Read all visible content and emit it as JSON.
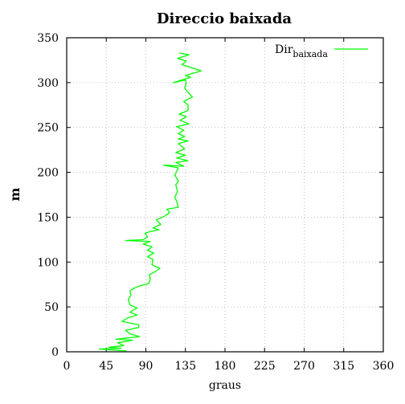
{
  "chart_data": {
    "type": "line",
    "title": "Direccio baixada",
    "xlabel": "graus",
    "ylabel": "m",
    "xlim": [
      0,
      360
    ],
    "ylim": [
      0,
      350
    ],
    "xticks": [
      0,
      45,
      90,
      135,
      180,
      225,
      270,
      315,
      360
    ],
    "yticks": [
      0,
      50,
      100,
      150,
      200,
      250,
      300,
      350
    ],
    "grid": true,
    "legend_position": "top-right",
    "series": [
      {
        "name": "Dir",
        "name_subscript": "baixada",
        "color": "#00ff00",
        "points": [
          [
            68,
            1
          ],
          [
            37,
            3
          ],
          [
            62,
            4
          ],
          [
            48,
            5
          ],
          [
            65,
            7
          ],
          [
            58,
            10
          ],
          [
            75,
            13
          ],
          [
            56,
            14
          ],
          [
            83,
            17
          ],
          [
            72,
            20
          ],
          [
            67,
            24
          ],
          [
            82,
            27
          ],
          [
            82,
            30
          ],
          [
            72,
            32
          ],
          [
            63,
            34
          ],
          [
            70,
            38
          ],
          [
            80,
            41
          ],
          [
            72,
            44
          ],
          [
            80,
            49
          ],
          [
            72,
            52
          ],
          [
            70,
            58
          ],
          [
            73,
            63
          ],
          [
            72,
            68
          ],
          [
            77,
            71
          ],
          [
            82,
            73
          ],
          [
            93,
            76
          ],
          [
            95,
            81
          ],
          [
            94,
            86
          ],
          [
            100,
            89
          ],
          [
            106,
            93
          ],
          [
            97,
            97
          ],
          [
            98,
            103
          ],
          [
            92,
            106
          ],
          [
            99,
            110
          ],
          [
            92,
            113
          ],
          [
            97,
            117
          ],
          [
            87,
            120
          ],
          [
            95,
            123
          ],
          [
            67,
            124
          ],
          [
            87,
            125
          ],
          [
            92,
            128
          ],
          [
            89,
            132
          ],
          [
            95,
            134
          ],
          [
            105,
            136
          ],
          [
            98,
            138
          ],
          [
            107,
            142
          ],
          [
            102,
            147
          ],
          [
            111,
            151
          ],
          [
            117,
            155
          ],
          [
            114,
            159
          ],
          [
            127,
            161
          ],
          [
            125,
            168
          ],
          [
            123,
            172
          ],
          [
            126,
            179
          ],
          [
            124,
            186
          ],
          [
            127,
            190
          ],
          [
            123,
            197
          ],
          [
            127,
            205
          ],
          [
            110,
            208
          ],
          [
            133,
            207
          ],
          [
            124,
            211
          ],
          [
            138,
            213
          ],
          [
            125,
            216
          ],
          [
            135,
            219
          ],
          [
            124,
            222
          ],
          [
            134,
            226
          ],
          [
            127,
            232
          ],
          [
            138,
            235
          ],
          [
            127,
            237
          ],
          [
            134,
            240
          ],
          [
            127,
            243
          ],
          [
            133,
            247
          ],
          [
            125,
            251
          ],
          [
            139,
            254
          ],
          [
            129,
            258
          ],
          [
            136,
            262
          ],
          [
            128,
            265
          ],
          [
            138,
            269
          ],
          [
            138,
            275
          ],
          [
            133,
            279
          ],
          [
            143,
            284
          ],
          [
            138,
            289
          ],
          [
            134,
            294
          ],
          [
            136,
            299
          ],
          [
            135,
            303
          ],
          [
            121,
            300
          ],
          [
            141,
            306
          ],
          [
            135,
            308
          ],
          [
            153,
            313
          ],
          [
            141,
            317
          ],
          [
            131,
            320
          ],
          [
            136,
            324
          ],
          [
            126,
            327
          ],
          [
            139,
            331
          ],
          [
            128,
            333
          ]
        ]
      }
    ]
  }
}
